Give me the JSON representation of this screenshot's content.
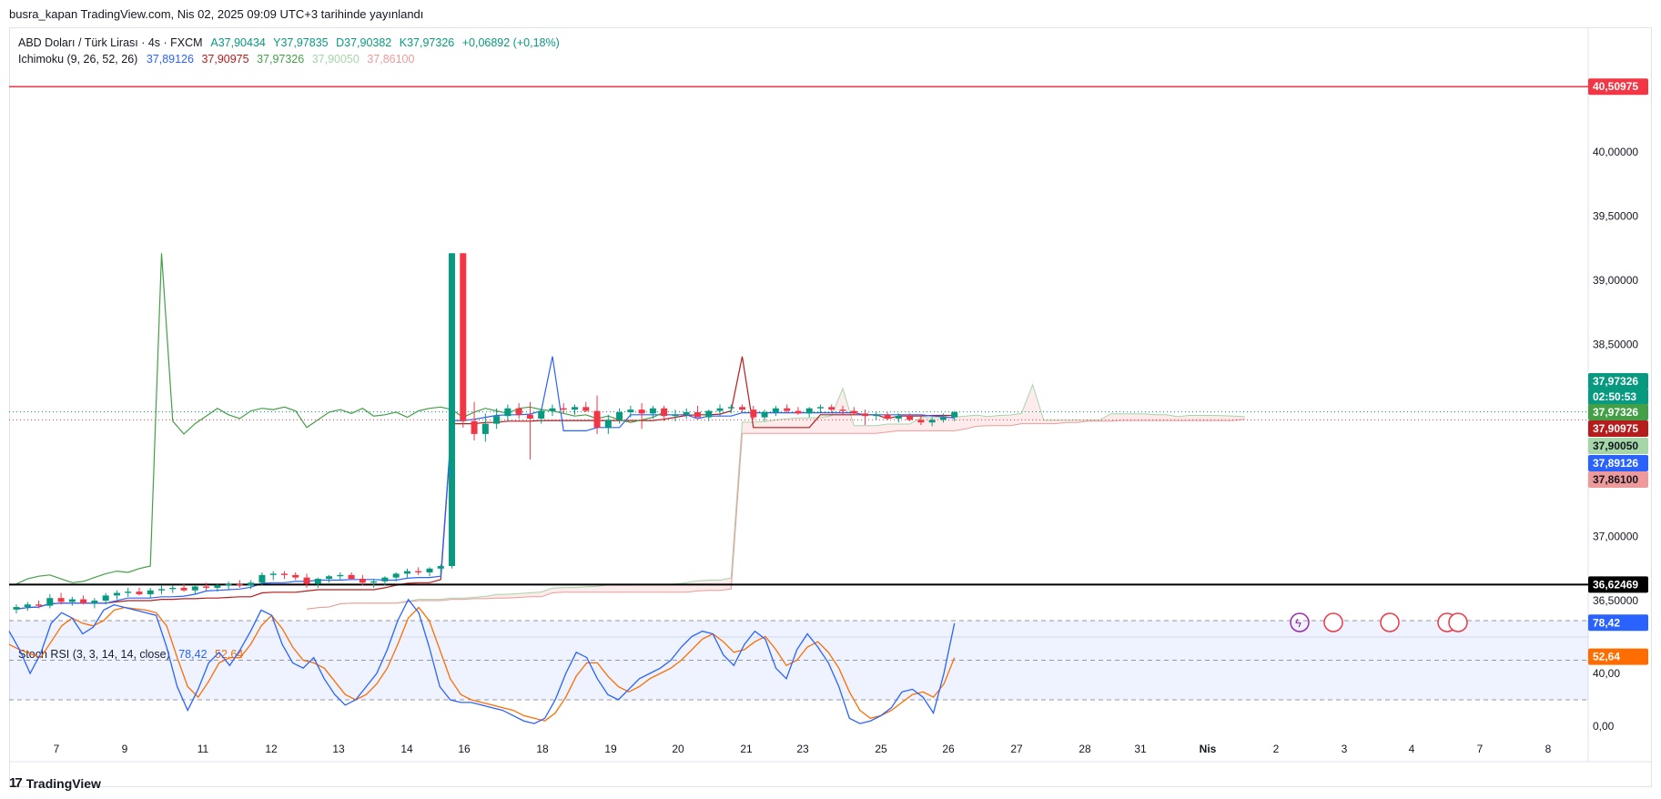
{
  "header": {
    "publish_line": "busra_kapan TradingView.com, Nis 02, 2025 09:09 UTC+3 tarihinde yayınlandı"
  },
  "legend_main": {
    "symbol": "ABD Doları / Türk Lirası · 4s · FXCM",
    "open": "A37,90434",
    "high": "Y37,97835",
    "low": "D37,90382",
    "close": "K37,97326",
    "change": "+0,06892 (+0,18%)"
  },
  "legend_ichimoku": {
    "label": "Ichimoku (9, 26, 52, 26)",
    "values": [
      "37,89126",
      "37,90975",
      "37,97326",
      "37,90050",
      "37,86100"
    ]
  },
  "legend_stoch": {
    "label": "Stoch RSI (3, 3, 14, 14, close)",
    "k": "78,42",
    "d": "52,64"
  },
  "price_tags": {
    "resistance": "40,50975",
    "support": "36,62469",
    "last": "37,97326",
    "countdown": "02:50:53",
    "lagging": "37,97326",
    "base": "37,90975",
    "span_a": "37,90050",
    "conversion": "37,89126",
    "span_b": "37,86100",
    "stoch_k": "78,42",
    "stoch_d": "52,64"
  },
  "colors": {
    "up": "#089981",
    "down": "#f23645",
    "conversion": "#2962ff",
    "base": "#b71c1c",
    "lagging": "#43a047",
    "span_a": "#a5d6a7",
    "span_b": "#ef9a9a",
    "stoch_k": "#2962ff",
    "stoch_d": "#ff6d00",
    "resistance": "#f23645",
    "support": "#000000"
  },
  "footer": {
    "brand": "TradingView"
  },
  "chart_data": {
    "type": "candlestick",
    "y_ticks": [
      "40,00000",
      "39,50000",
      "39,00000",
      "38,50000",
      "37,00000",
      "36,50000"
    ],
    "y_tick_values": [
      40.0,
      39.5,
      39.0,
      38.5,
      37.0,
      36.5
    ],
    "stoch_ticks": [
      "40,00",
      "0,00"
    ],
    "stoch_tick_values": [
      40,
      0
    ],
    "x_ticks": [
      "7",
      "9",
      "11",
      "12",
      "13",
      "14",
      "16",
      "18",
      "19",
      "20",
      "21",
      "23",
      "25",
      "26",
      "27",
      "28",
      "31",
      "Nis",
      "2",
      "3",
      "4",
      "7",
      "8"
    ],
    "horizontal_lines": [
      {
        "value": 40.50975,
        "label": "40,50975"
      },
      {
        "value": 36.62469,
        "label": "36,62469"
      }
    ],
    "candles": [
      [
        36.43,
        36.47,
        36.4,
        36.45
      ],
      [
        36.45,
        36.49,
        36.42,
        36.47
      ],
      [
        36.47,
        36.5,
        36.44,
        36.46
      ],
      [
        36.46,
        36.55,
        36.44,
        36.52
      ],
      [
        36.52,
        36.56,
        36.47,
        36.49
      ],
      [
        36.49,
        36.53,
        36.46,
        36.51
      ],
      [
        36.51,
        36.54,
        36.47,
        36.48
      ],
      [
        36.48,
        36.52,
        36.44,
        36.5
      ],
      [
        36.5,
        36.56,
        36.47,
        36.54
      ],
      [
        36.54,
        36.58,
        36.51,
        36.56
      ],
      [
        36.56,
        36.6,
        36.53,
        36.57
      ],
      [
        36.57,
        36.6,
        36.54,
        36.55
      ],
      [
        36.55,
        36.6,
        36.52,
        36.58
      ],
      [
        36.58,
        36.62,
        36.55,
        36.59
      ],
      [
        36.59,
        36.62,
        36.56,
        36.6
      ],
      [
        36.6,
        36.63,
        36.57,
        36.58
      ],
      [
        36.58,
        36.62,
        36.55,
        36.61
      ],
      [
        36.61,
        36.64,
        36.58,
        36.6
      ],
      [
        36.6,
        36.63,
        36.57,
        36.62
      ],
      [
        36.62,
        36.65,
        36.59,
        36.63
      ],
      [
        36.63,
        36.66,
        36.6,
        36.62
      ],
      [
        36.62,
        36.66,
        36.59,
        36.64
      ],
      [
        36.64,
        36.72,
        36.62,
        36.7
      ],
      [
        36.7,
        36.73,
        36.66,
        36.71
      ],
      [
        36.71,
        36.73,
        36.67,
        36.7
      ],
      [
        36.7,
        36.72,
        36.66,
        36.68
      ],
      [
        36.68,
        36.71,
        36.6,
        36.63
      ],
      [
        36.63,
        36.68,
        36.6,
        36.67
      ],
      [
        36.67,
        36.7,
        36.64,
        36.69
      ],
      [
        36.69,
        36.72,
        36.66,
        36.7
      ],
      [
        36.7,
        36.72,
        36.66,
        36.67
      ],
      [
        36.67,
        36.7,
        36.62,
        36.64
      ],
      [
        36.64,
        36.67,
        36.6,
        36.65
      ],
      [
        36.65,
        36.69,
        36.62,
        36.68
      ],
      [
        36.68,
        36.72,
        36.65,
        36.71
      ],
      [
        36.71,
        36.75,
        36.68,
        36.73
      ],
      [
        36.73,
        36.76,
        36.7,
        36.72
      ],
      [
        36.72,
        36.76,
        36.69,
        36.75
      ],
      [
        36.75,
        36.78,
        36.7,
        36.77
      ],
      [
        36.77,
        39.21,
        36.75,
        39.21
      ],
      [
        39.21,
        39.21,
        37.85,
        37.9
      ],
      [
        37.9,
        38.05,
        37.75,
        37.8
      ],
      [
        37.8,
        37.96,
        37.74,
        37.88
      ],
      [
        37.88,
        38.0,
        37.84,
        37.94
      ],
      [
        37.94,
        38.03,
        37.9,
        38.0
      ],
      [
        38.0,
        38.04,
        37.92,
        37.95
      ],
      [
        37.95,
        38.05,
        37.6,
        37.92
      ],
      [
        37.92,
        38.0,
        37.88,
        37.98
      ],
      [
        37.98,
        38.03,
        37.94,
        38.0
      ],
      [
        38.0,
        38.04,
        37.96,
        37.99
      ],
      [
        37.99,
        38.03,
        37.95,
        38.01
      ],
      [
        38.01,
        38.05,
        37.97,
        37.98
      ],
      [
        37.98,
        38.1,
        37.8,
        37.85
      ],
      [
        37.85,
        37.95,
        37.8,
        37.91
      ],
      [
        37.91,
        38.0,
        37.88,
        37.97
      ],
      [
        37.97,
        38.02,
        37.93,
        37.99
      ],
      [
        37.99,
        38.04,
        37.84,
        37.96
      ],
      [
        37.96,
        38.02,
        37.92,
        38.0
      ],
      [
        38.0,
        38.02,
        37.9,
        37.94
      ],
      [
        37.94,
        37.99,
        37.9,
        37.95
      ],
      [
        37.95,
        38.0,
        37.92,
        37.97
      ],
      [
        37.97,
        38.02,
        37.93,
        37.93
      ],
      [
        37.93,
        37.99,
        37.9,
        37.98
      ],
      [
        37.98,
        38.03,
        37.94,
        38.0
      ],
      [
        38.0,
        38.03,
        37.96,
        38.01
      ],
      [
        38.01,
        38.03,
        37.97,
        37.99
      ],
      [
        37.99,
        38.02,
        37.91,
        37.93
      ],
      [
        37.93,
        37.99,
        37.9,
        37.97
      ],
      [
        37.97,
        38.02,
        37.94,
        38.0
      ],
      [
        38.0,
        38.03,
        37.96,
        37.98
      ],
      [
        37.98,
        38.01,
        37.95,
        37.96
      ],
      [
        37.96,
        38.01,
        37.93,
        38.0
      ],
      [
        38.0,
        38.03,
        37.96,
        38.01
      ],
      [
        38.01,
        38.03,
        37.97,
        37.99
      ],
      [
        37.99,
        38.02,
        37.95,
        37.98
      ],
      [
        37.98,
        38.01,
        37.95,
        37.96
      ],
      [
        37.96,
        37.99,
        37.87,
        37.94
      ],
      [
        37.94,
        37.97,
        37.91,
        37.95
      ],
      [
        37.95,
        37.97,
        37.91,
        37.92
      ],
      [
        37.92,
        37.96,
        37.89,
        37.94
      ],
      [
        37.94,
        37.96,
        37.9,
        37.91
      ],
      [
        37.91,
        37.94,
        37.87,
        37.89
      ],
      [
        37.89,
        37.93,
        37.86,
        37.91
      ],
      [
        37.91,
        37.96,
        37.89,
        37.93
      ],
      [
        37.93,
        37.98,
        37.9,
        37.97
      ]
    ],
    "ichimoku": {
      "conversion_line": "37,89126",
      "base_line": "37,90975",
      "lagging_span": "37,97326",
      "leading_span_a": "37,90050",
      "leading_span_b": "37,86100"
    },
    "stoch_rsi": {
      "k": [
        72,
        58,
        40,
        55,
        78,
        86,
        82,
        70,
        75,
        88,
        92,
        90,
        88,
        86,
        84,
        60,
        30,
        12,
        28,
        48,
        56,
        46,
        58,
        72,
        88,
        84,
        62,
        48,
        44,
        52,
        36,
        24,
        16,
        20,
        30,
        40,
        58,
        80,
        96,
        86,
        60,
        30,
        20,
        18,
        18,
        16,
        14,
        12,
        8,
        4,
        2,
        6,
        20,
        40,
        56,
        52,
        36,
        24,
        20,
        28,
        36,
        40,
        44,
        50,
        60,
        68,
        72,
        70,
        54,
        46,
        62,
        72,
        66,
        44,
        36,
        58,
        70,
        60,
        48,
        30,
        6,
        2,
        4,
        8,
        14,
        26,
        28,
        22,
        10,
        40,
        78
      ],
      "d": [
        62,
        58,
        55,
        52,
        64,
        76,
        82,
        78,
        76,
        80,
        88,
        90,
        89,
        88,
        86,
        76,
        52,
        30,
        22,
        34,
        48,
        52,
        52,
        62,
        76,
        84,
        74,
        60,
        50,
        48,
        44,
        34,
        24,
        20,
        24,
        32,
        44,
        62,
        82,
        90,
        80,
        58,
        36,
        24,
        20,
        18,
        16,
        14,
        12,
        8,
        6,
        4,
        10,
        22,
        38,
        48,
        48,
        38,
        30,
        26,
        30,
        36,
        40,
        44,
        50,
        58,
        66,
        70,
        64,
        56,
        58,
        64,
        68,
        58,
        46,
        50,
        60,
        64,
        56,
        44,
        26,
        12,
        6,
        8,
        12,
        18,
        24,
        26,
        22,
        32,
        52
      ],
      "levels": [
        80,
        50,
        20
      ]
    }
  }
}
